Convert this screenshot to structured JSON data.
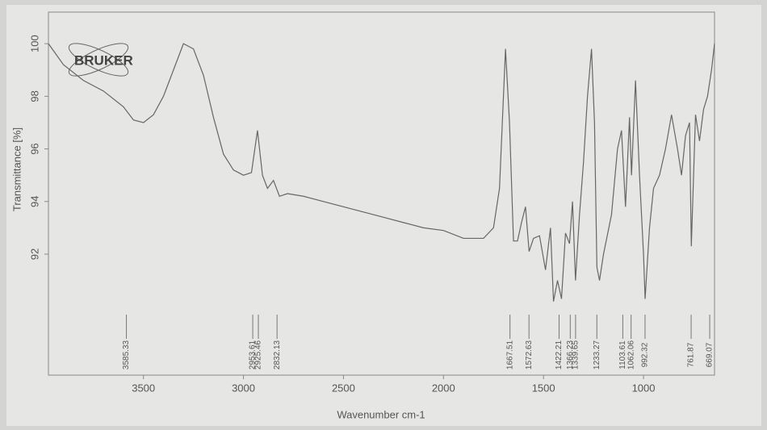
{
  "logo": "BRUKER",
  "chart_data": {
    "type": "line",
    "x_label": "Wavenumber cm-1",
    "y_label": "Transmittance [%]",
    "xlim": [
      3975,
      645
    ],
    "ylim": [
      87.4,
      101.2
    ],
    "xticks": [
      3500,
      3000,
      2500,
      2000,
      1500,
      1000
    ],
    "yticks": [
      92,
      94,
      96,
      98,
      100
    ],
    "color": "#666666",
    "peaks": [
      3585.33,
      2953.61,
      2925.46,
      2832.13,
      1667.51,
      1572.63,
      1422.21,
      1366.23,
      1339.65,
      1233.27,
      1103.61,
      1062.06,
      992.32,
      761.87,
      669.07
    ],
    "x": [
      3975,
      3900,
      3800,
      3700,
      3600,
      3550,
      3500,
      3450,
      3400,
      3350,
      3300,
      3250,
      3200,
      3150,
      3100,
      3050,
      3000,
      2960,
      2930,
      2905,
      2880,
      2850,
      2820,
      2780,
      2700,
      2600,
      2500,
      2400,
      2300,
      2200,
      2100,
      2000,
      1900,
      1800,
      1750,
      1720,
      1690,
      1670,
      1650,
      1630,
      1610,
      1590,
      1572,
      1550,
      1520,
      1490,
      1465,
      1450,
      1430,
      1410,
      1390,
      1370,
      1355,
      1340,
      1320,
      1300,
      1280,
      1260,
      1245,
      1233,
      1220,
      1200,
      1160,
      1130,
      1110,
      1090,
      1070,
      1060,
      1040,
      1020,
      1000,
      992,
      970,
      950,
      920,
      890,
      860,
      830,
      810,
      790,
      770,
      761,
      740,
      720,
      700,
      680,
      660,
      645
    ],
    "values": [
      100.0,
      99.2,
      98.6,
      98.2,
      97.6,
      97.1,
      97.0,
      97.3,
      98.0,
      99.0,
      100.0,
      99.8,
      98.8,
      97.2,
      95.8,
      95.2,
      95.0,
      95.1,
      96.7,
      95.0,
      94.5,
      94.8,
      94.2,
      94.3,
      94.2,
      94.0,
      93.8,
      93.6,
      93.4,
      93.2,
      93.0,
      92.9,
      92.6,
      92.6,
      93.0,
      94.5,
      99.8,
      97.0,
      92.5,
      92.5,
      93.2,
      93.8,
      92.1,
      92.6,
      92.7,
      91.4,
      93.0,
      90.2,
      91.0,
      90.3,
      92.8,
      92.4,
      94.0,
      91.0,
      93.5,
      95.5,
      98.0,
      99.8,
      97.0,
      91.5,
      91.0,
      92.0,
      93.5,
      96.0,
      96.7,
      93.8,
      97.2,
      95.0,
      98.6,
      95.0,
      92.0,
      90.3,
      93.0,
      94.5,
      95.0,
      96.0,
      97.3,
      96.0,
      95.0,
      96.5,
      97.0,
      92.3,
      97.3,
      96.3,
      97.5,
      98.0,
      99.0,
      100.0
    ]
  }
}
